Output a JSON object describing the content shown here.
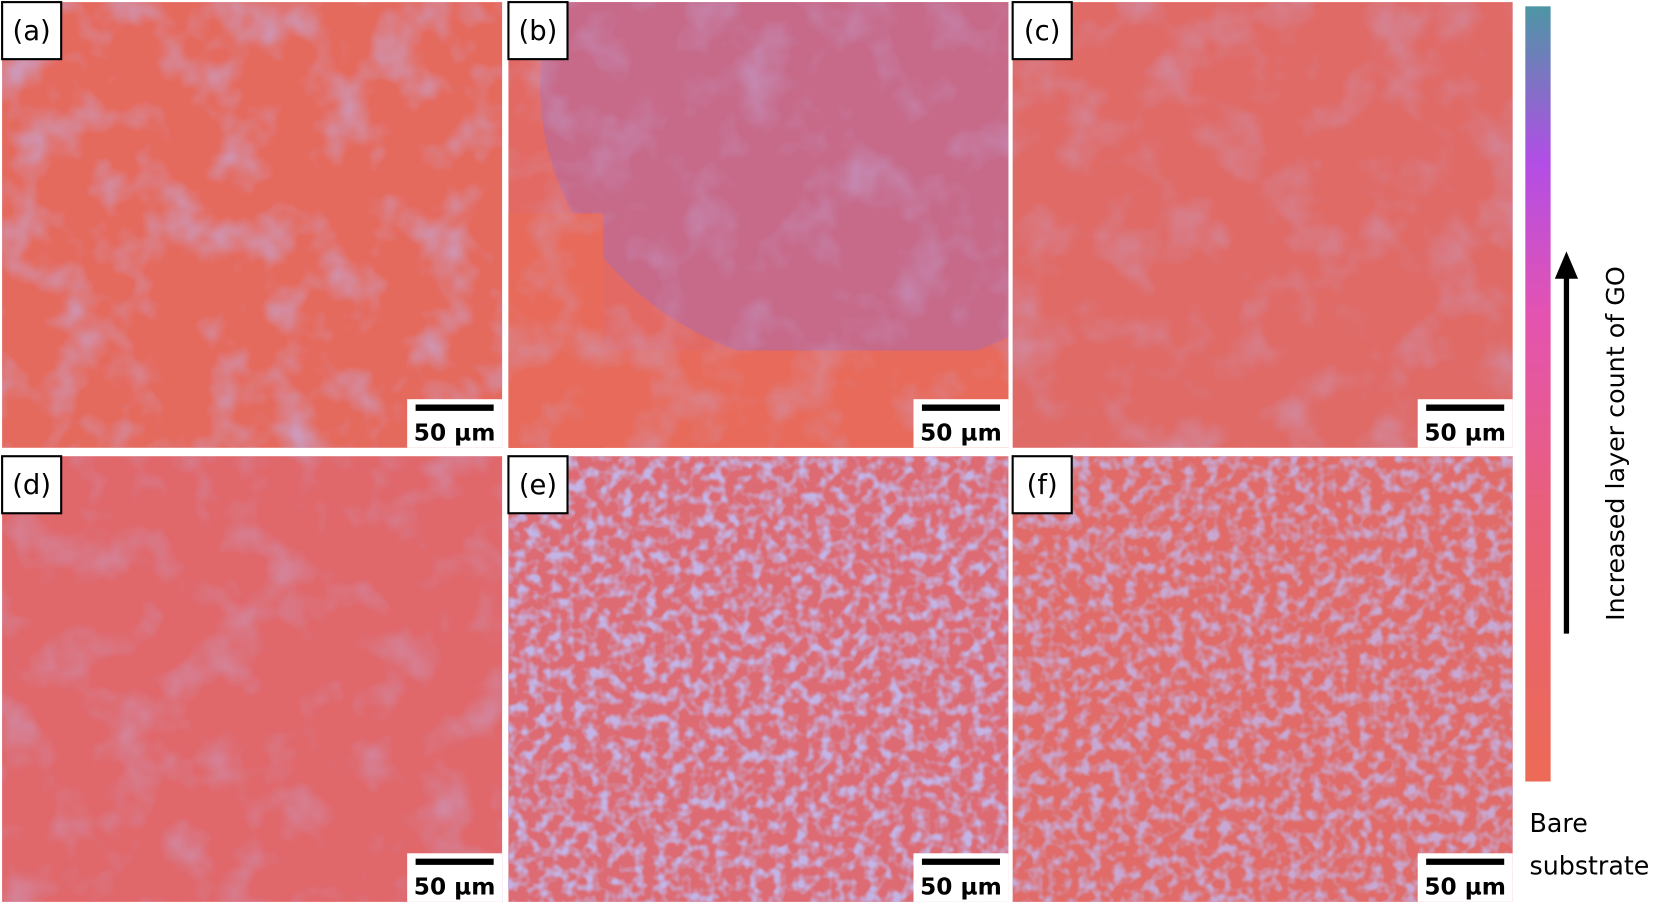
{
  "panels": [
    {
      "label": "(a)",
      "scale_bar": "50 µm"
    },
    {
      "label": "(b)",
      "scale_bar": "50 µm"
    },
    {
      "label": "(c)",
      "scale_bar": "50 µm"
    },
    {
      "label": "(d)",
      "scale_bar": "50 µm"
    },
    {
      "label": "(e)",
      "scale_bar": "50 µm"
    },
    {
      "label": "(f)",
      "scale_bar": "50 µm"
    }
  ],
  "colorbar": {
    "label": "Increased layer count of GO",
    "bottom_label": [
      "Bare",
      "substrate"
    ]
  }
}
